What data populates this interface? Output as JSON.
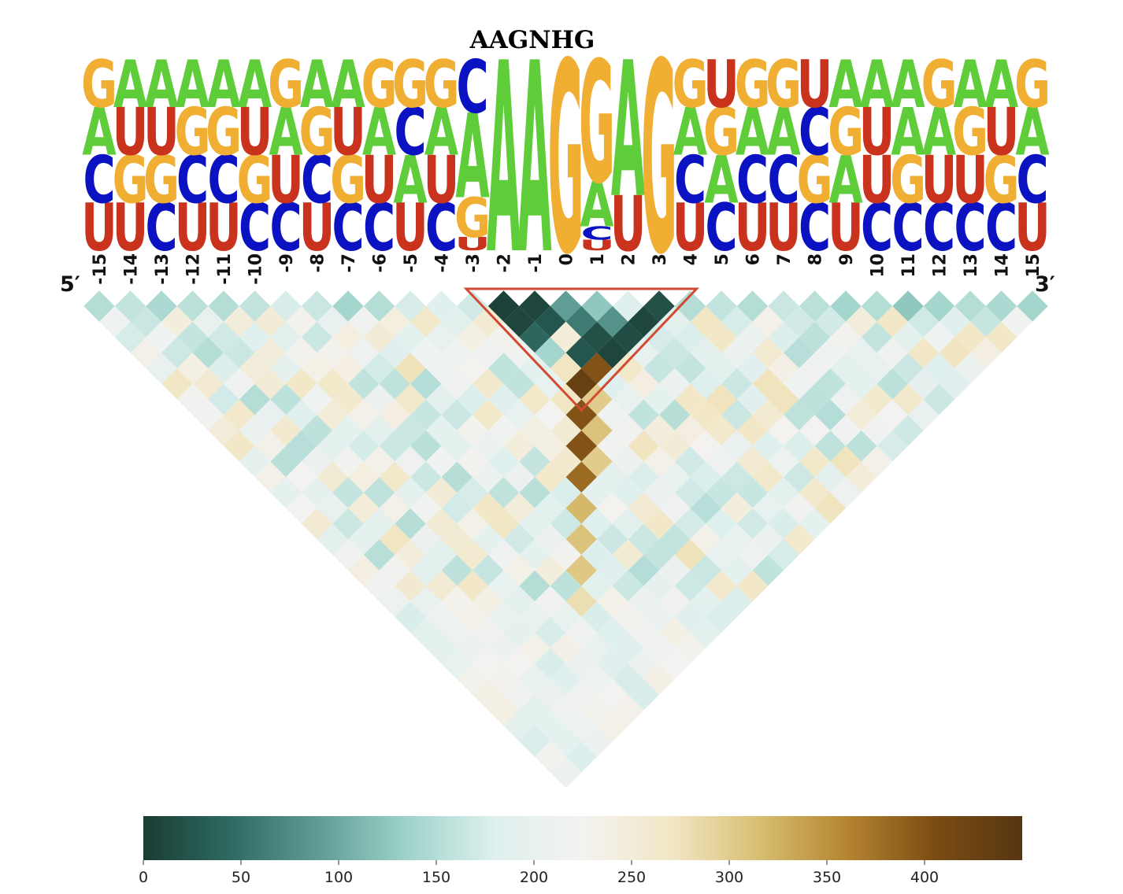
{
  "chart_data": {
    "type": "heatmap",
    "title": "AAGNHG",
    "end_labels": {
      "left": "5′",
      "right": "3′"
    },
    "positions": [
      "-15",
      "-14",
      "-13",
      "-12",
      "-11",
      "-10",
      "-9",
      "-8",
      "-7",
      "-6",
      "-5",
      "-4",
      "-3",
      "-2",
      "-1",
      "0",
      "1",
      "2",
      "3",
      "4",
      "5",
      "6",
      "7",
      "8",
      "9",
      "10",
      "11",
      "12",
      "13",
      "14",
      "15"
    ],
    "sequence_logo": {
      "letter_colors": {
        "A": "#5fcc3a",
        "C": "#0a12c2",
        "G": "#f0ae33",
        "U": "#c9321d"
      },
      "columns": [
        [
          "U",
          "C",
          "A",
          "G"
        ],
        [
          "U",
          "G",
          "U",
          "A"
        ],
        [
          "C",
          "G",
          "U",
          "A"
        ],
        [
          "U",
          "C",
          "G",
          "A"
        ],
        [
          "U",
          "C",
          "G",
          "A"
        ],
        [
          "C",
          "G",
          "U",
          "A"
        ],
        [
          "C",
          "U",
          "A",
          "G"
        ],
        [
          "U",
          "C",
          "G",
          "A"
        ],
        [
          "C",
          "G",
          "U",
          "A"
        ],
        [
          "C",
          "U",
          "A",
          "G"
        ],
        [
          "U",
          "A",
          "C",
          "G"
        ],
        [
          "C",
          "U",
          "A",
          "G"
        ],
        [
          "U",
          "G",
          "A",
          "C"
        ],
        [
          "A"
        ],
        [
          "A"
        ],
        [
          "G"
        ],
        [
          "U",
          "C",
          "A",
          "G"
        ],
        [
          "U",
          "A"
        ],
        [
          "G"
        ],
        [
          "U",
          "C",
          "A",
          "G"
        ],
        [
          "C",
          "A",
          "G",
          "U"
        ],
        [
          "U",
          "C",
          "A",
          "G"
        ],
        [
          "U",
          "C",
          "A",
          "G"
        ],
        [
          "C",
          "G",
          "C",
          "U"
        ],
        [
          "U",
          "A",
          "G",
          "A"
        ],
        [
          "C",
          "U",
          "U",
          "A"
        ],
        [
          "C",
          "G",
          "A",
          "A"
        ],
        [
          "C",
          "U",
          "A",
          "G"
        ],
        [
          "C",
          "U",
          "G",
          "A"
        ],
        [
          "C",
          "G",
          "U",
          "A"
        ],
        [
          "U",
          "C",
          "A",
          "G"
        ]
      ],
      "letter_heights": [
        [
          1,
          1,
          1,
          1
        ],
        [
          1,
          1,
          1,
          1
        ],
        [
          1,
          1,
          1,
          1
        ],
        [
          1,
          1,
          1,
          1
        ],
        [
          1,
          1,
          1,
          1
        ],
        [
          1,
          1,
          1,
          1
        ],
        [
          1,
          1,
          1,
          1
        ],
        [
          1,
          1,
          1,
          1
        ],
        [
          1,
          1,
          1,
          1
        ],
        [
          1,
          1,
          1,
          1
        ],
        [
          1,
          1,
          1,
          1
        ],
        [
          1,
          1,
          1,
          1
        ],
        [
          0.25,
          0.75,
          1.6,
          1.0
        ],
        [
          1
        ],
        [
          1
        ],
        [
          1
        ],
        [
          0.2,
          0.25,
          0.85,
          2.3
        ],
        [
          0.65,
          1.6
        ],
        [
          1
        ],
        [
          1,
          1,
          1,
          1
        ],
        [
          1,
          1,
          1,
          1
        ],
        [
          1,
          1,
          1,
          1
        ],
        [
          1,
          1,
          1,
          1
        ],
        [
          1,
          1,
          1,
          1
        ],
        [
          1,
          1,
          1,
          1
        ],
        [
          1,
          1,
          1,
          1
        ],
        [
          1,
          1,
          1,
          1
        ],
        [
          1,
          1,
          1,
          1
        ],
        [
          1,
          1,
          1,
          1
        ],
        [
          1,
          1,
          1,
          1
        ],
        [
          1,
          1,
          1,
          1
        ]
      ]
    },
    "heatmap": {
      "colorscale": "BrBG_r",
      "vmin": 0,
      "vmax": 450,
      "colorbar_ticks": [
        0,
        50,
        100,
        150,
        200,
        250,
        300,
        350,
        400
      ],
      "diagonal_values": [
        150,
        160,
        145,
        155,
        150,
        160,
        175,
        165,
        140,
        150,
        175,
        180,
        170,
        5,
        10,
        90,
        125,
        180,
        20,
        150,
        160,
        150,
        165,
        155,
        140,
        150,
        125,
        140,
        150,
        145,
        140
      ],
      "strong_cells": [
        {
          "i": 13,
          "j": 14,
          "value": 10
        },
        {
          "i": 14,
          "j": 15,
          "value": 25
        },
        {
          "i": 13,
          "j": 15,
          "value": 40
        },
        {
          "i": 15,
          "j": 16,
          "value": 60
        },
        {
          "i": 16,
          "j": 17,
          "value": 80
        },
        {
          "i": 17,
          "j": 18,
          "value": 10
        },
        {
          "i": 14,
          "j": 16,
          "value": 250
        },
        {
          "i": 15,
          "j": 17,
          "value": 20
        },
        {
          "i": 16,
          "j": 18,
          "value": 15
        },
        {
          "i": 13,
          "j": 16,
          "value": 140
        },
        {
          "i": 14,
          "j": 17,
          "value": 25
        },
        {
          "i": 15,
          "j": 18,
          "value": 10
        },
        {
          "i": 14,
          "j": 18,
          "value": 400
        },
        {
          "i": 13,
          "j": 18,
          "value": 430
        },
        {
          "i": 12,
          "j": 19,
          "value": 400
        },
        {
          "i": 11,
          "j": 20,
          "value": 400
        },
        {
          "i": 10,
          "j": 21,
          "value": 380
        },
        {
          "i": 9,
          "j": 22,
          "value": 320
        },
        {
          "i": 8,
          "j": 23,
          "value": 310
        },
        {
          "i": 7,
          "j": 24,
          "value": 305
        },
        {
          "i": 6,
          "j": 25,
          "value": 280
        },
        {
          "i": 12,
          "j": 20,
          "value": 310
        },
        {
          "i": 11,
          "j": 21,
          "value": 300
        },
        {
          "i": 15,
          "j": 19,
          "value": 265
        },
        {
          "i": 13,
          "j": 19,
          "value": 300
        },
        {
          "i": 12,
          "j": 18,
          "value": 270
        },
        {
          "i": 11,
          "j": 17,
          "value": 265
        },
        {
          "i": 10,
          "j": 15,
          "value": 260
        },
        {
          "i": 5,
          "j": 10,
          "value": 265
        }
      ]
    },
    "annotation": {
      "type": "triangle",
      "color": "#d24a32",
      "from_position": "-3",
      "to_position": "4"
    },
    "colorbar_stops": [
      "#1a3c33",
      "#2e6b62",
      "#5f9d96",
      "#9ed3ca",
      "#dff0ee",
      "#f3f2f0",
      "#f2e7c5",
      "#d8bf72",
      "#b58530",
      "#7c4c14",
      "#563611"
    ]
  }
}
